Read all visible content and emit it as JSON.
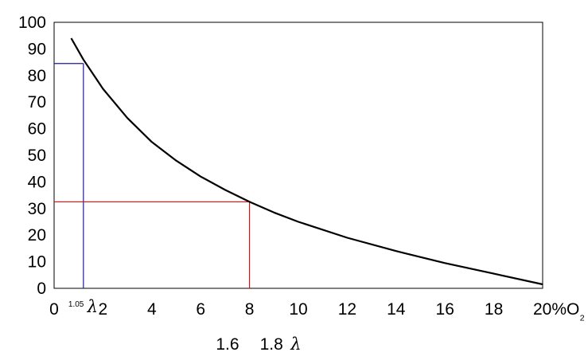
{
  "chart_data": {
    "type": "line",
    "x_unit": "%O₂",
    "xlim": [
      0,
      20
    ],
    "ylim": [
      0,
      100
    ],
    "x_ticks": [
      0,
      2,
      4,
      6,
      8,
      10,
      12,
      14,
      16,
      18,
      20
    ],
    "y_ticks": [
      0,
      10,
      20,
      30,
      40,
      50,
      60,
      70,
      80,
      90,
      100
    ],
    "ylabel": "",
    "series": [
      {
        "color": "#000000",
        "x": [
          0.7,
          1.2,
          2,
          3,
          4,
          5,
          6,
          7,
          8,
          9,
          10,
          12,
          14,
          16,
          18,
          20
        ],
        "y": [
          94,
          86,
          75,
          64,
          55,
          48,
          42,
          37,
          32.5,
          28.5,
          25,
          19,
          14,
          9.5,
          5.5,
          1.5
        ]
      }
    ],
    "reference_lines": [
      {
        "color": "#1a1aa0",
        "x": 1.2,
        "y": 84.5
      },
      {
        "color": "#e01010",
        "x": 8,
        "y": 32.5
      }
    ],
    "annotations": [
      {
        "text": "1.05",
        "x": 0.9
      },
      {
        "text": "1.6",
        "x": 7.1
      },
      {
        "text": "1.8",
        "x": 8.9
      }
    ],
    "lambda_symbol": "λ"
  }
}
